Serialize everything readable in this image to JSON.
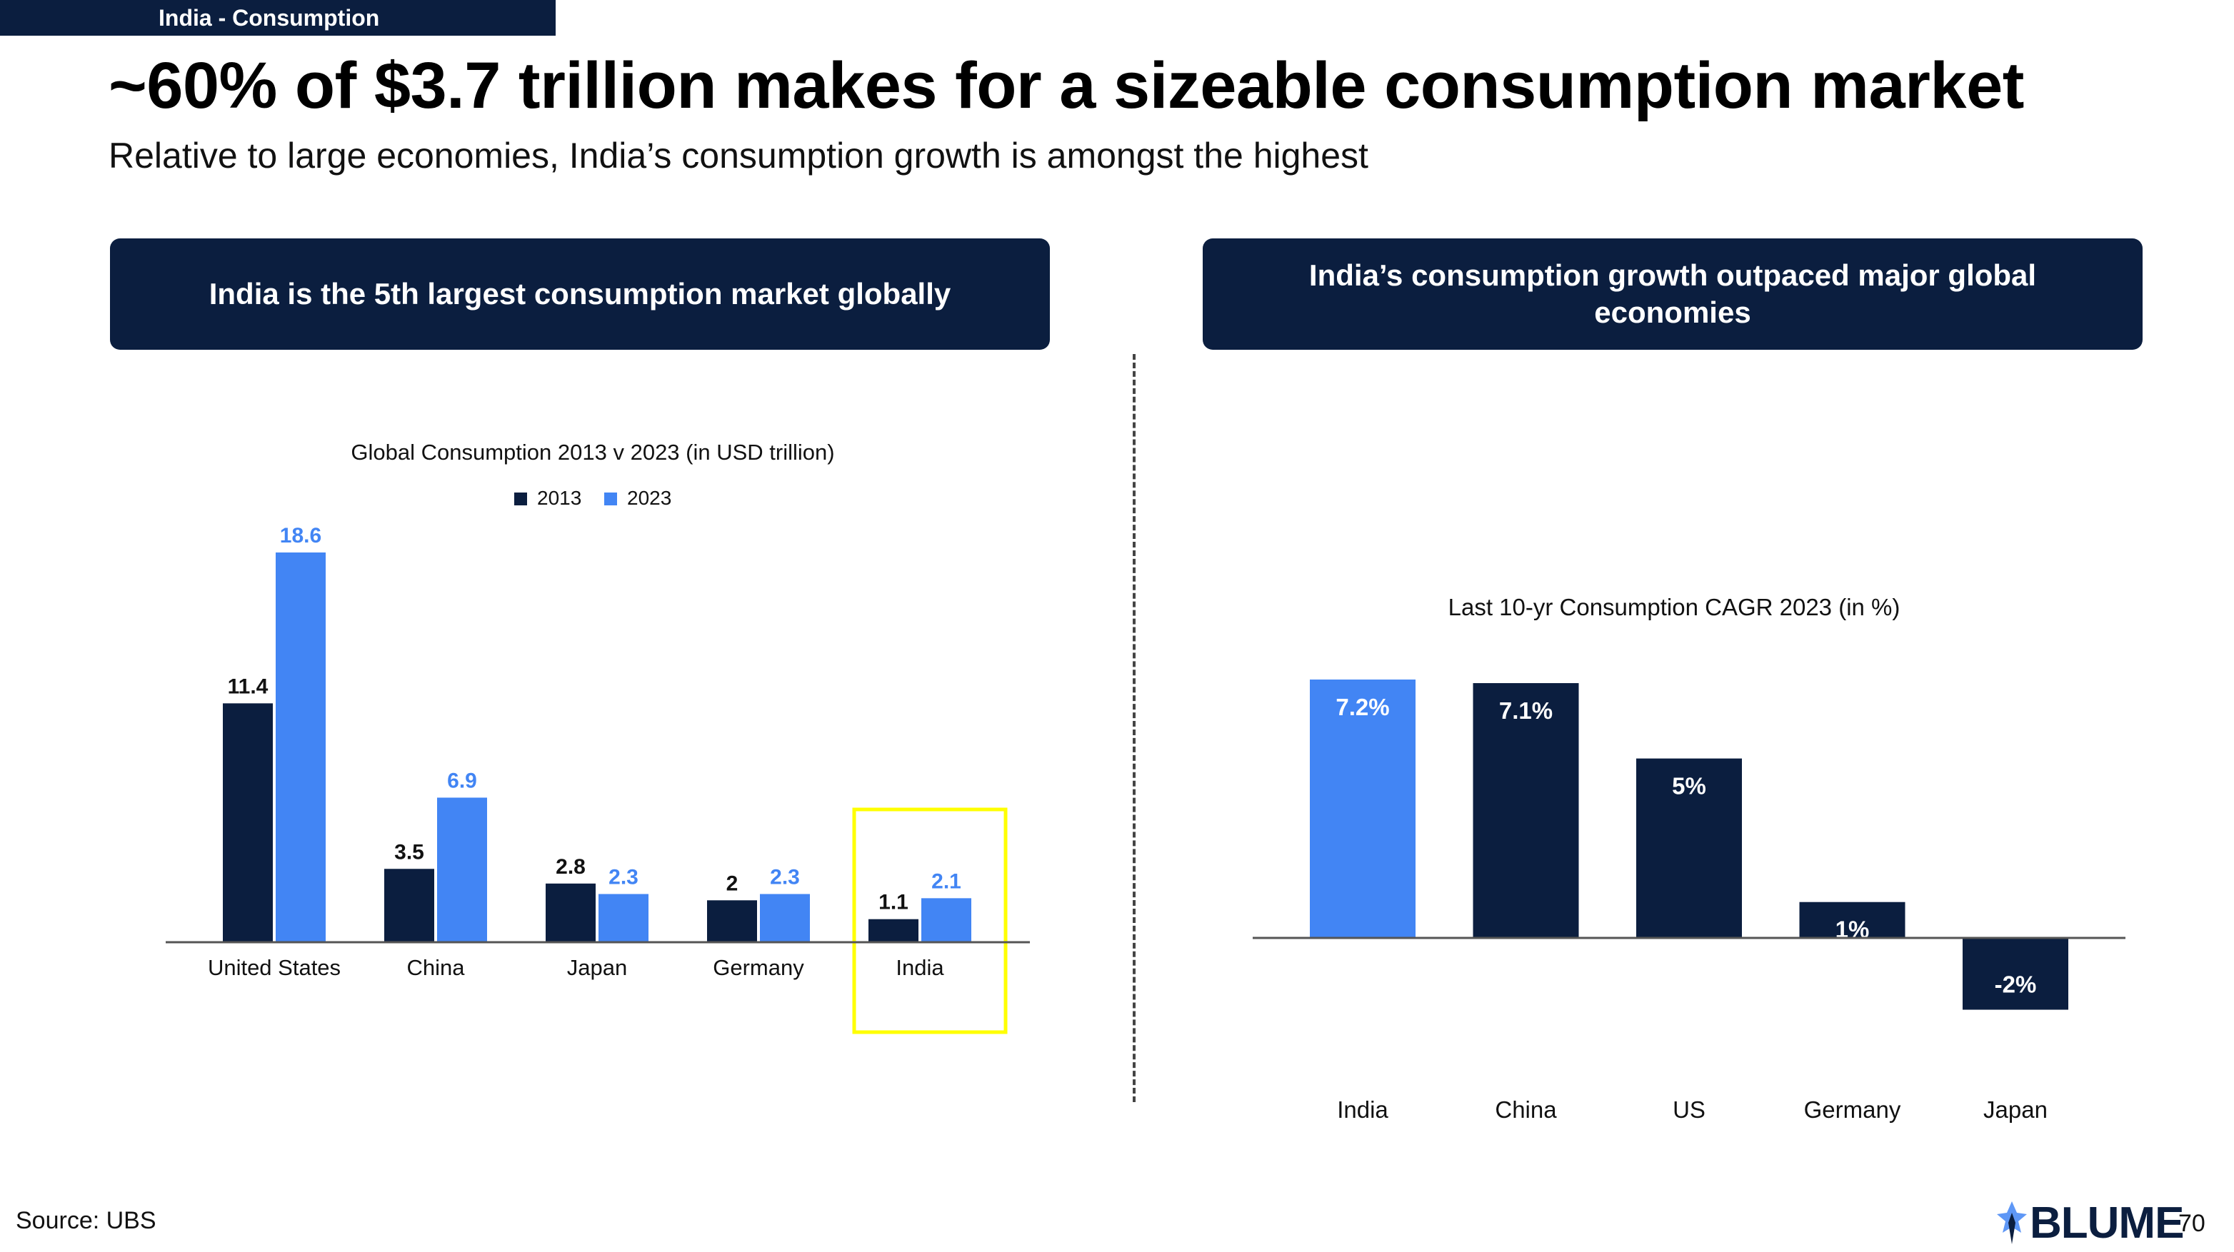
{
  "tag": "India - Consumption",
  "title": "~60% of $3.7 trillion makes for a sizeable consumption market",
  "subtitle": "Relative to large economies, India’s consumption growth is amongst the highest",
  "left_header": "India is the 5th largest consumption market globally",
  "right_header": "India’s consumption growth outpaced major global economies",
  "source": "Source: UBS",
  "logo_text": "BLUME",
  "page_number": "70",
  "colors": {
    "dark": "#0b1e3f",
    "light": "#4285f4",
    "highlight": "#ffff00"
  },
  "chart_data": [
    {
      "type": "bar",
      "title": "Global Consumption  2013 v 2023 (in USD trillion)",
      "categories": [
        "United States",
        "China",
        "Japan",
        "Germany",
        "India"
      ],
      "series": [
        {
          "name": "2013",
          "values": [
            11.4,
            3.5,
            2.8,
            2,
            1.1
          ],
          "labels": [
            "11.4",
            "3.5",
            "2.8",
            "2",
            "1.1"
          ]
        },
        {
          "name": "2023",
          "values": [
            18.6,
            6.9,
            2.3,
            2.3,
            2.1
          ],
          "labels": [
            "18.6",
            "6.9",
            "2.3",
            "2.3",
            "2.1"
          ]
        }
      ],
      "highlighted_category": "India",
      "ylim": [
        0,
        18.6
      ],
      "xlabel": "",
      "ylabel": "",
      "legend": "top-center"
    },
    {
      "type": "bar",
      "title": "Last 10-yr Consumption CAGR 2023 (in %)",
      "categories": [
        "India",
        "China",
        "US",
        "Germany",
        "Japan"
      ],
      "values": [
        7.2,
        7.1,
        5,
        1,
        -2
      ],
      "labels": [
        "7.2%",
        "7.1%",
        "5%",
        "1%",
        "-2%"
      ],
      "ylim": [
        -2,
        7.2
      ],
      "xlabel": "",
      "ylabel": ""
    }
  ]
}
